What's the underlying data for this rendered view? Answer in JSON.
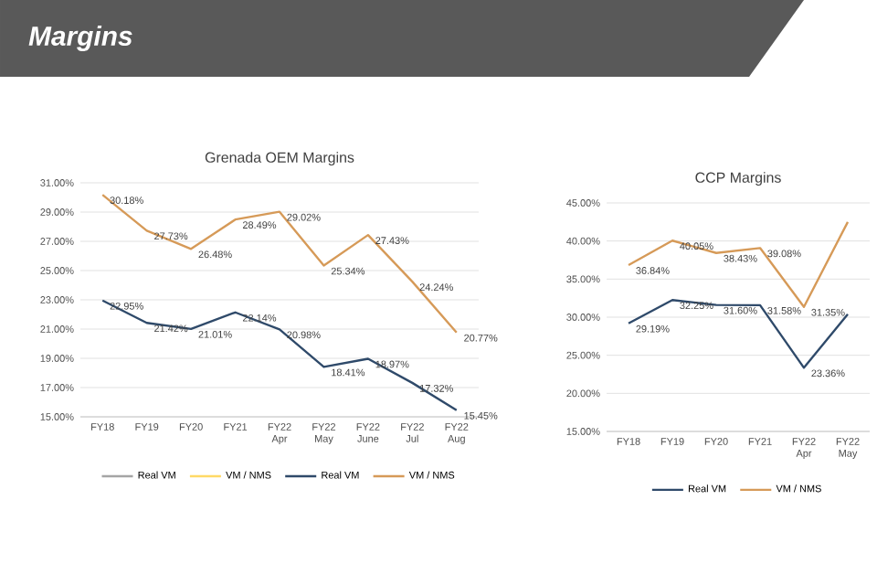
{
  "chart_data": [
    {
      "type": "line",
      "title": "Grenada OEM Margins",
      "annotations": [
        "Margins"
      ],
      "categories": [
        "FY18",
        "FY19",
        "FY20",
        "FY21",
        "FY22 Apr",
        "FY22 May",
        "FY22 June",
        "FY22 Jul",
        "FY22 Aug"
      ],
      "series": [
        {
          "name": "Real VM",
          "color": "#a5a5a5",
          "values": [
            null,
            null,
            null,
            null,
            null,
            null,
            null,
            null,
            null
          ]
        },
        {
          "name": "VM / NMS",
          "color": "#ffd966",
          "values": [
            null,
            null,
            null,
            null,
            null,
            null,
            null,
            null,
            null
          ]
        },
        {
          "name": "Real VM",
          "color": "#2f4a6a",
          "values": [
            22.95,
            21.42,
            21.01,
            22.14,
            20.98,
            18.41,
            18.97,
            17.32,
            15.45
          ],
          "value_labels": [
            "22.95%",
            "21.42%",
            "21.01%",
            "22.14%",
            "20.98%",
            "18.41%",
            "18.97%",
            "17.32%",
            "15.45%"
          ]
        },
        {
          "name": "VM / NMS",
          "color": "#d69a58",
          "values": [
            30.18,
            27.73,
            26.48,
            28.49,
            29.02,
            25.34,
            27.43,
            24.24,
            20.77
          ],
          "value_labels": [
            "30.18%",
            "27.73%",
            "26.48%",
            "28.49%",
            "29.02%",
            "25.34%",
            "27.43%",
            "24.24%",
            "20.77%"
          ]
        }
      ],
      "ylim": [
        15,
        31
      ],
      "yticks": [
        {
          "value": 15,
          "label": "15.00%"
        },
        {
          "value": 17,
          "label": "17.00%"
        },
        {
          "value": 19,
          "label": "19.00%"
        },
        {
          "value": 21,
          "label": "21.00%"
        },
        {
          "value": 23,
          "label": "23.00%"
        },
        {
          "value": 25,
          "label": "25.00%"
        },
        {
          "value": 27,
          "label": "27.00%"
        },
        {
          "value": 29,
          "label": "29.00%"
        },
        {
          "value": 31,
          "label": "31.00%"
        }
      ],
      "grid": "y",
      "legend": "bottom"
    },
    {
      "type": "line",
      "title": "CCP Margins",
      "categories": [
        "FY18",
        "FY19",
        "FY20",
        "FY21",
        "FY22 Apr",
        "FY22 May"
      ],
      "series": [
        {
          "name": "Real VM",
          "color": "#2f4a6a",
          "values": [
            29.19,
            32.25,
            31.6,
            31.58,
            23.36,
            30.4
          ],
          "value_labels": [
            "29.19%",
            "32.25%",
            "31.60%",
            "31.58%",
            "23.36%",
            null
          ]
        },
        {
          "name": "VM / NMS",
          "color": "#d69a58",
          "values": [
            36.84,
            40.05,
            38.43,
            39.08,
            31.35,
            42.5
          ],
          "value_labels": [
            "36.84%",
            "40.05%",
            "38.43%",
            "39.08%",
            "31.35%",
            null
          ]
        }
      ],
      "ylim": [
        15,
        45
      ],
      "yticks": [
        {
          "value": 15,
          "label": "15.00%"
        },
        {
          "value": 20,
          "label": "20.00%"
        },
        {
          "value": 25,
          "label": "25.00%"
        },
        {
          "value": 30,
          "label": "30.00%"
        },
        {
          "value": 35,
          "label": "35.00%"
        },
        {
          "value": 40,
          "label": "40.00%"
        },
        {
          "value": 45,
          "label": "45.00%"
        }
      ],
      "grid": "y",
      "legend": "bottom"
    }
  ]
}
